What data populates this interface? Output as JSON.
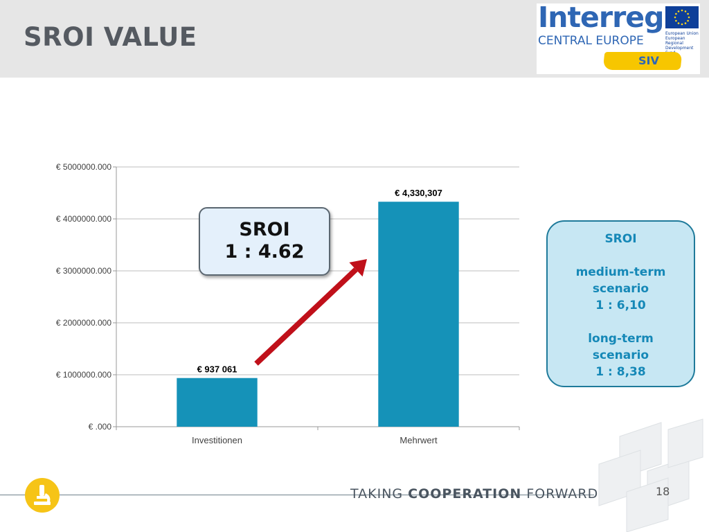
{
  "header": {
    "title": "SROI VALUE"
  },
  "logo": {
    "word": "Interreg",
    "subtitle": "CENTRAL EUROPE",
    "eu_text": "European Union European Regional Development Fund",
    "project": "SIV",
    "colors": {
      "brand_blue": "#2e66b4",
      "brush_yellow": "#f7c600",
      "eu_blue": "#0e3f99"
    }
  },
  "chart_data": {
    "type": "bar",
    "categories": [
      "Investitionen",
      "Mehrwert"
    ],
    "values": [
      937061,
      4330307
    ],
    "data_labels": [
      "€ 937 061",
      "€ 4,330,307"
    ],
    "y_ticks": [
      0,
      1000000,
      2000000,
      3000000,
      4000000,
      5000000
    ],
    "y_tick_labels": [
      "€ .000",
      "€ 1000000.000",
      "€ 2000000.000",
      "€ 3000000.000",
      "€ 4000000.000",
      "€ 5000000.000"
    ],
    "ylim": [
      0,
      5000000
    ],
    "title": "",
    "xlabel": "",
    "ylabel": "",
    "grid": true,
    "legend": "none",
    "bar_color": "#1592b8"
  },
  "callout": {
    "line1": "SROI",
    "line2": "1 : 4.62"
  },
  "info_box": {
    "title": "SROI",
    "medium_label_1": "medium-term",
    "medium_label_2": "scenario",
    "medium_ratio": "1 : 6,10",
    "long_label_1": "long-term",
    "long_label_2": "scenario",
    "long_ratio": "1 : 8,38"
  },
  "arrow": {
    "color": "#c0101a"
  },
  "footer": {
    "text_before": "TAKING ",
    "text_bold": "COOPERATION",
    "text_after": " FORWARD",
    "page_number": "18",
    "icon": "microscope-icon"
  }
}
